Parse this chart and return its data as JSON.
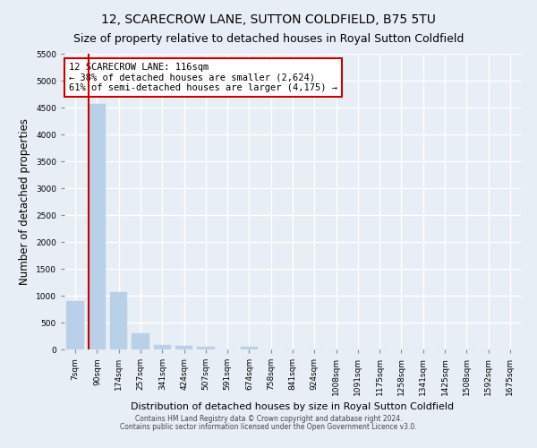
{
  "title": "12, SCARECROW LANE, SUTTON COLDFIELD, B75 5TU",
  "subtitle": "Size of property relative to detached houses in Royal Sutton Coldfield",
  "xlabel": "Distribution of detached houses by size in Royal Sutton Coldfield",
  "ylabel": "Number of detached properties",
  "footer1": "Contains HM Land Registry data © Crown copyright and database right 2024.",
  "footer2": "Contains public sector information licensed under the Open Government Licence v3.0.",
  "bar_labels": [
    "7sqm",
    "90sqm",
    "174sqm",
    "257sqm",
    "341sqm",
    "424sqm",
    "507sqm",
    "591sqm",
    "674sqm",
    "758sqm",
    "841sqm",
    "924sqm",
    "1008sqm",
    "1091sqm",
    "1175sqm",
    "1258sqm",
    "1341sqm",
    "1425sqm",
    "1508sqm",
    "1592sqm",
    "1675sqm"
  ],
  "bar_values": [
    900,
    4560,
    1060,
    295,
    80,
    65,
    55,
    0,
    55,
    0,
    0,
    0,
    0,
    0,
    0,
    0,
    0,
    0,
    0,
    0,
    0
  ],
  "bar_color": "#b8d0e8",
  "bar_edge_color": "#b8d0e8",
  "vline_x_index": 1,
  "vline_color": "#cc0000",
  "annotation_text": "12 SCARECROW LANE: 116sqm\n← 38% of detached houses are smaller (2,624)\n61% of semi-detached houses are larger (4,175) →",
  "annotation_box_color": "#cc0000",
  "ylim": [
    0,
    5500
  ],
  "yticks": [
    0,
    500,
    1000,
    1500,
    2000,
    2500,
    3000,
    3500,
    4000,
    4500,
    5000,
    5500
  ],
  "bg_color": "#e8eef5",
  "plot_bg_color": "#e8eef5",
  "grid_color": "#ffffff",
  "title_fontsize": 10,
  "subtitle_fontsize": 9,
  "tick_fontsize": 6.5,
  "ylabel_fontsize": 8.5,
  "xlabel_fontsize": 8
}
